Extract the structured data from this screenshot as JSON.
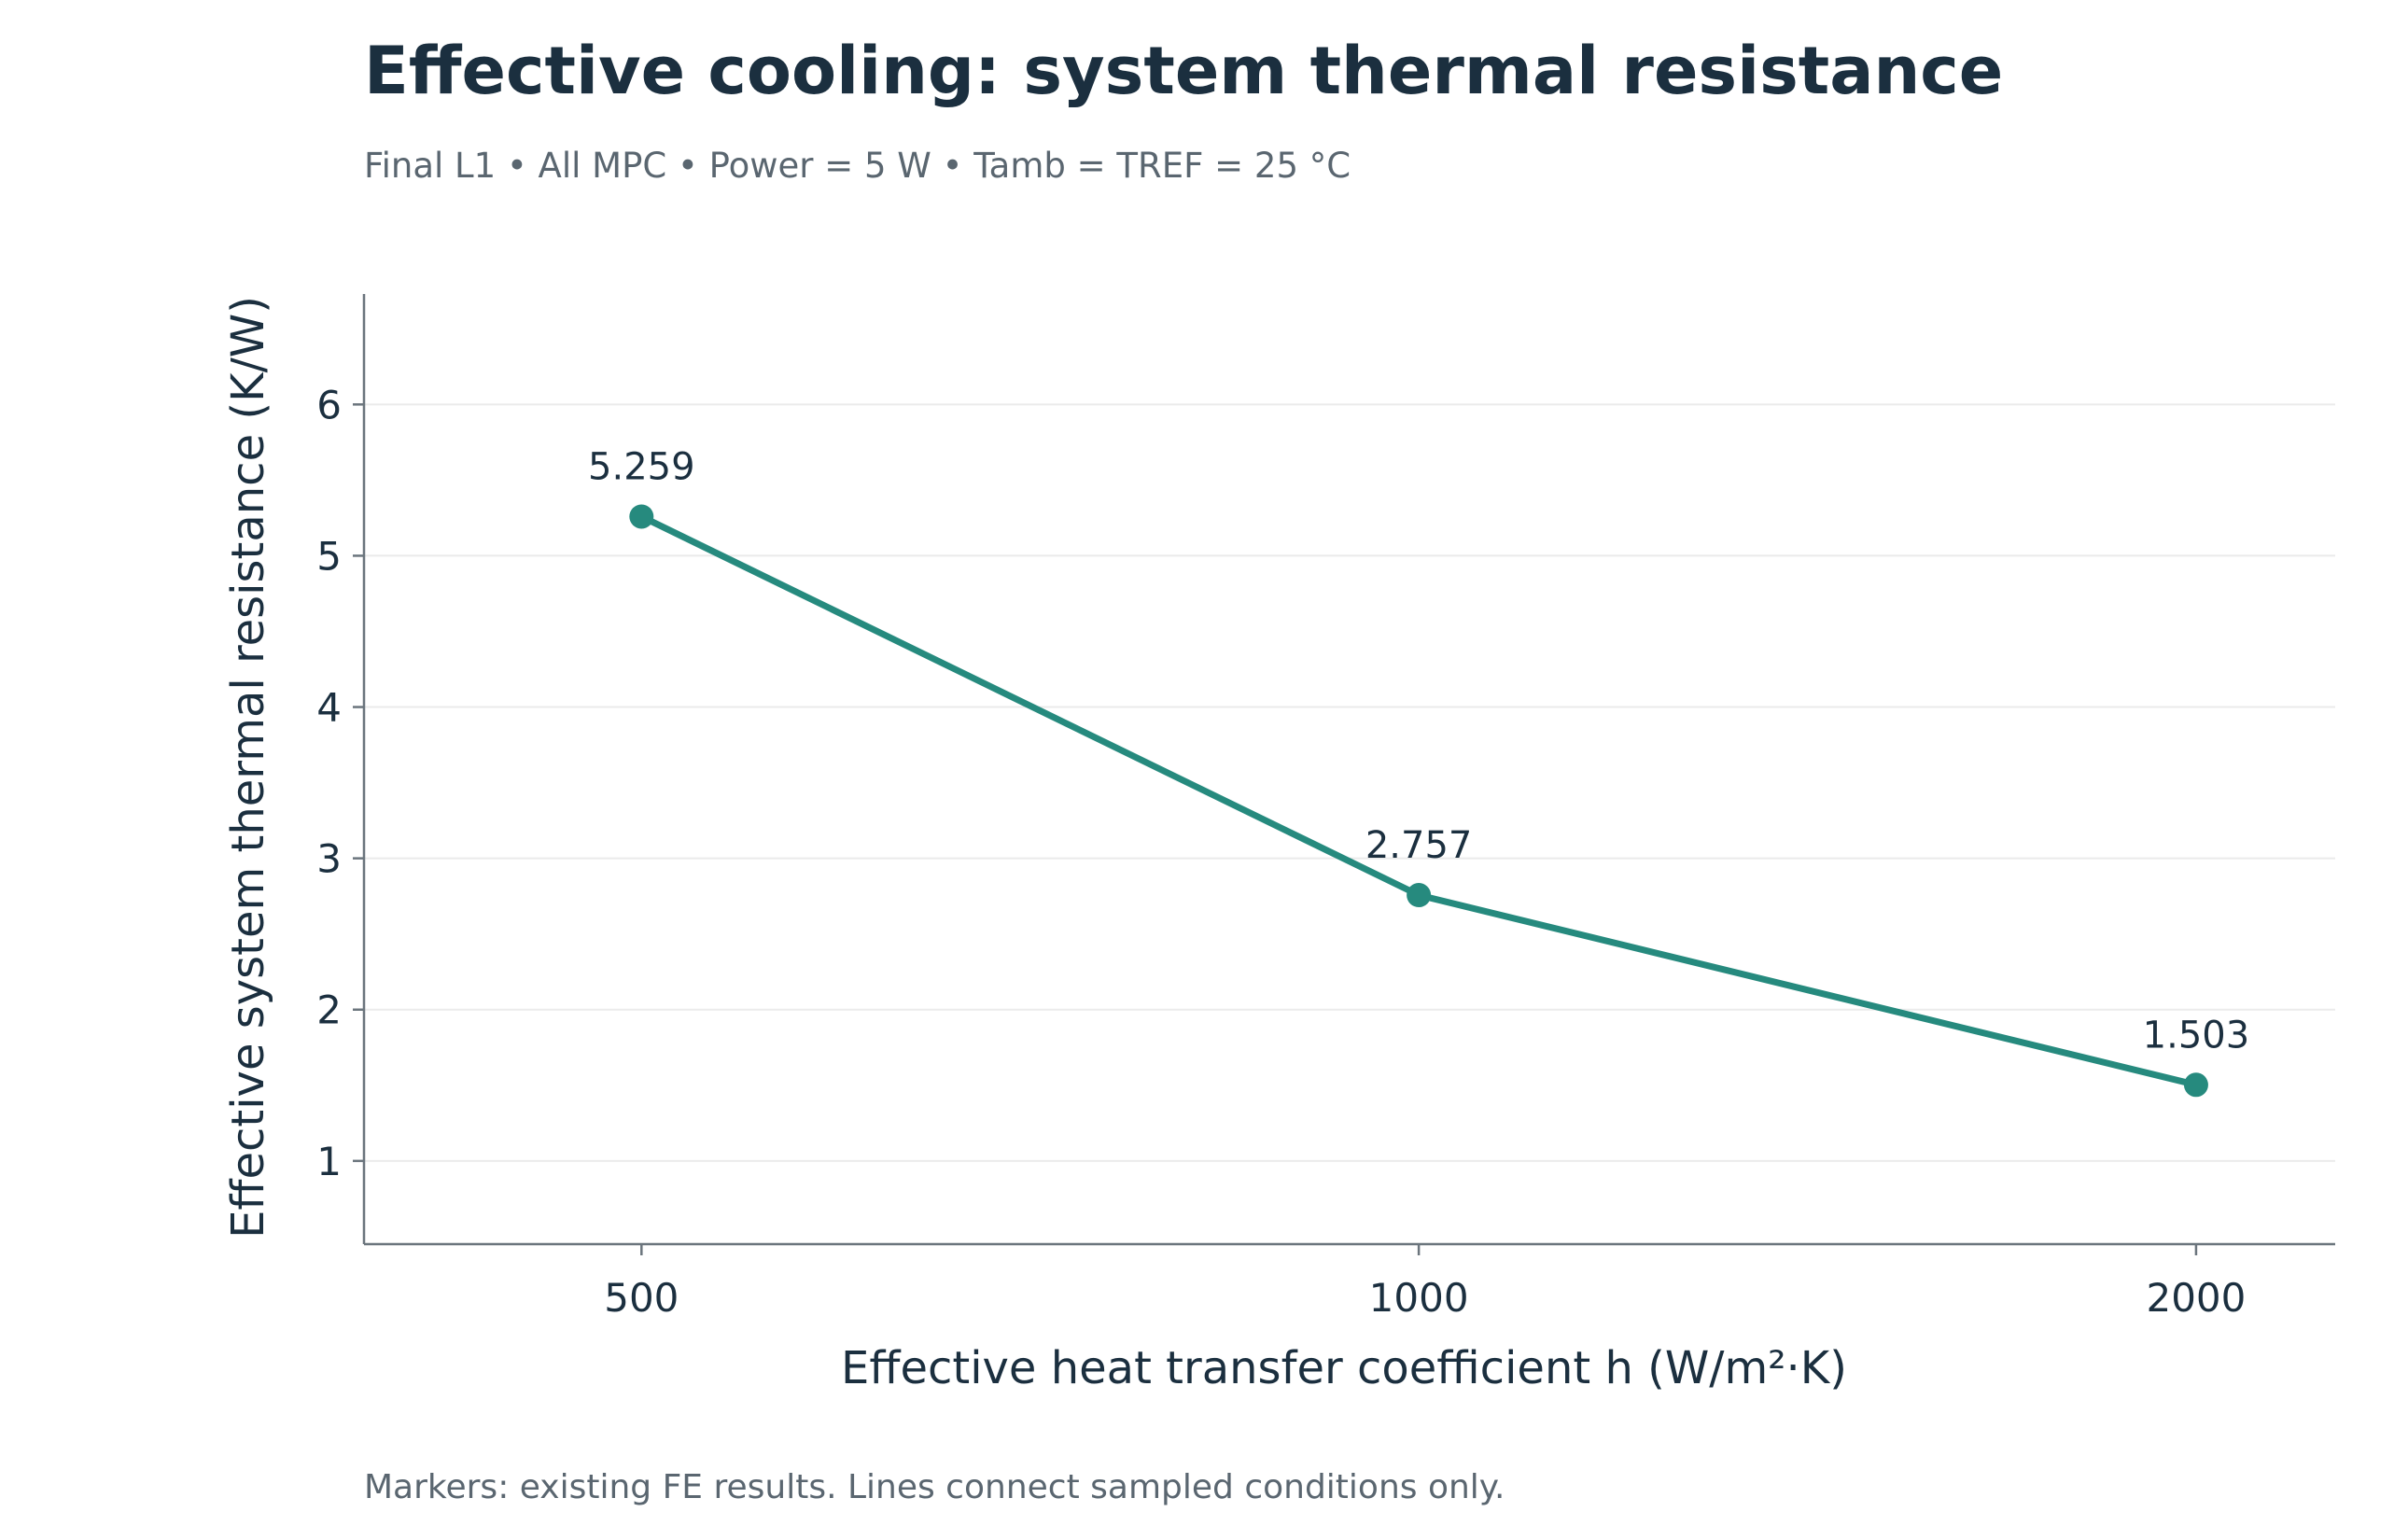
{
  "chart_data": {
    "type": "line",
    "title": "Effective cooling: system thermal resistance",
    "subtitle": "Final L1 • All MPC • Power = 5 W • Tamb = TREF = 25 °C",
    "xlabel": "Effective heat transfer coefficient h (W/m²·K)",
    "ylabel": "Effective system thermal resistance (K/W)",
    "footnote": "Markers: existing FE results. Lines connect sampled conditions only.",
    "x": [
      500,
      1000,
      2000
    ],
    "xticks": [
      "500",
      "1000",
      "2000"
    ],
    "yticks": [
      "1",
      "2",
      "3",
      "4",
      "5",
      "6"
    ],
    "ylim": [
      0.45,
      6.73
    ],
    "grid": "horizontal",
    "series": [
      {
        "values": [
          5.259,
          2.757,
          1.503
        ],
        "labels": [
          "5.259",
          "2.757",
          "1.503"
        ],
        "color": "#268a7e"
      }
    ],
    "colors": {
      "title": "#1b2f3f",
      "subtitle": "#5a6670",
      "text": "#1b2f3f",
      "axis": "#6b757d",
      "grid": "#ebebeb"
    }
  }
}
